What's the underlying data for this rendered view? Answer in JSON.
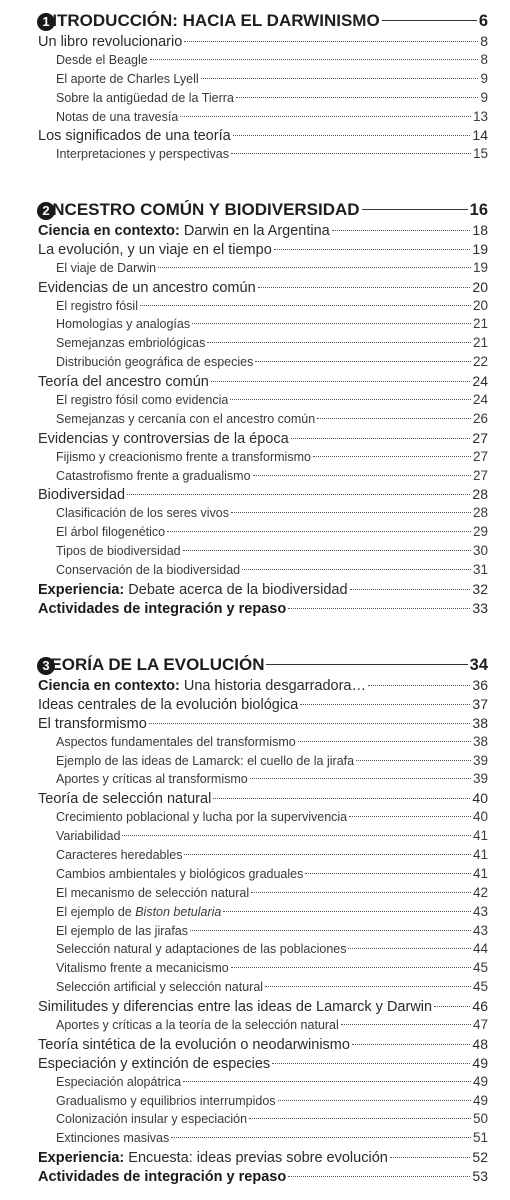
{
  "chapters": [
    {
      "number": "1",
      "title": "INTRODUCCIÓN: HACIA EL DARWINISMO",
      "page": "6",
      "entries": [
        {
          "level": "sec",
          "title": "Un libro revolucionario",
          "page": "8"
        },
        {
          "level": "sub",
          "title": "Desde el Beagle",
          "page": "8"
        },
        {
          "level": "sub",
          "title": "El aporte de Charles Lyell",
          "page": "9"
        },
        {
          "level": "sub",
          "title": "Sobre la antigüedad de la Tierra",
          "page": "9"
        },
        {
          "level": "sub",
          "title": "Notas de una travesía",
          "page": "13"
        },
        {
          "level": "sec",
          "title": "Los significados de una teoría",
          "page": "14"
        },
        {
          "level": "sub",
          "title": "Interpretaciones y perspectivas",
          "page": "15"
        }
      ]
    },
    {
      "number": "2",
      "title": "ANCESTRO COMÚN Y BIODIVERSIDAD",
      "page": "16",
      "entries": [
        {
          "level": "sec",
          "prefix": "Ciencia en contexto:",
          "title": "Darwin en la Argentina",
          "page": "18"
        },
        {
          "level": "sec",
          "title": "La evolución, y un viaje en el tiempo",
          "page": "19"
        },
        {
          "level": "sub",
          "title": "El viaje de Darwin",
          "page": "19"
        },
        {
          "level": "sec",
          "title": "Evidencias de un ancestro común",
          "page": "20"
        },
        {
          "level": "sub",
          "title": "El registro fósil",
          "page": "20"
        },
        {
          "level": "sub",
          "title": "Homologías y analogías",
          "page": "21"
        },
        {
          "level": "sub",
          "title": "Semejanzas embriológicas",
          "page": "21"
        },
        {
          "level": "sub",
          "title": "Distribución geográfica de especies",
          "page": "22"
        },
        {
          "level": "sec",
          "title": "Teoría del ancestro común",
          "page": "24"
        },
        {
          "level": "sub",
          "title": "El registro fósil como evidencia",
          "page": "24"
        },
        {
          "level": "sub",
          "title": "Semejanzas y cercanía con el ancestro común",
          "page": "26"
        },
        {
          "level": "sec",
          "title": "Evidencias y controversias de la época",
          "page": "27"
        },
        {
          "level": "sub",
          "title": "Fijismo y creacionismo frente a transformismo",
          "page": "27"
        },
        {
          "level": "sub",
          "title": "Catastrofismo frente a gradualismo",
          "page": "27"
        },
        {
          "level": "sec",
          "title": "Biodiversidad",
          "page": "28"
        },
        {
          "level": "sub",
          "title": "Clasificación de los seres vivos",
          "page": "28"
        },
        {
          "level": "sub",
          "title": "El árbol filogenético",
          "page": "29"
        },
        {
          "level": "sub",
          "title": "Tipos de biodiversidad",
          "page": "30"
        },
        {
          "level": "sub",
          "title": "Conservación de la biodiversidad",
          "page": "31"
        },
        {
          "level": "sec",
          "prefix": "Experiencia:",
          "title": "Debate acerca de la biodiversidad",
          "page": "32"
        },
        {
          "level": "sec",
          "prefix": "Actividades de integración y repaso",
          "title": "",
          "page": "33"
        }
      ]
    },
    {
      "number": "3",
      "title": "TEORÍA DE LA EVOLUCIÓN",
      "page": "34",
      "entries": [
        {
          "level": "sec",
          "prefix": "Ciencia en contexto:",
          "title": "Una historia desgarradora…",
          "page": "36"
        },
        {
          "level": "sec",
          "title": "Ideas centrales de la evolución biológica",
          "page": "37"
        },
        {
          "level": "sec",
          "title": "El transformismo",
          "page": "38"
        },
        {
          "level": "sub",
          "title": "Aspectos fundamentales del transformismo",
          "page": "38"
        },
        {
          "level": "sub",
          "title": "Ejemplo de las ideas de Lamarck: el cuello de la jirafa",
          "page": "39"
        },
        {
          "level": "sub",
          "title": "Aportes y críticas al transformismo",
          "page": "39"
        },
        {
          "level": "sec",
          "title": "Teoría de selección natural",
          "page": "40"
        },
        {
          "level": "sub",
          "title": "Crecimiento poblacional y lucha por la supervivencia",
          "page": "40"
        },
        {
          "level": "sub",
          "title": "Variabilidad",
          "page": "41"
        },
        {
          "level": "sub",
          "title": "Caracteres heredables",
          "page": "41"
        },
        {
          "level": "sub",
          "title": "Cambios ambientales y biológicos graduales",
          "page": "41"
        },
        {
          "level": "sub",
          "title": "El mecanismo de selección natural",
          "page": "42"
        },
        {
          "level": "sub",
          "title": "El ejemplo de ",
          "italic": "Biston betularia",
          "page": "43"
        },
        {
          "level": "sub",
          "title": "El ejemplo de las jirafas",
          "page": "43"
        },
        {
          "level": "sub",
          "title": "Selección natural y adaptaciones de las poblaciones",
          "page": "44"
        },
        {
          "level": "sub",
          "title": "Vitalismo frente a mecanicismo",
          "page": "45"
        },
        {
          "level": "sub",
          "title": "Selección artificial y selección natural",
          "page": "45"
        },
        {
          "level": "sec",
          "title": "Similitudes y diferencias entre las ideas de Lamarck y Darwin",
          "page": "46"
        },
        {
          "level": "sub",
          "title": "Aportes y críticas a la teoría de la selección natural",
          "page": "47"
        },
        {
          "level": "sec",
          "title": "Teoría sintética de la evolución o neodarwinismo",
          "page": "48"
        },
        {
          "level": "sec",
          "title": "Especiación y extinción de especies",
          "page": "49"
        },
        {
          "level": "sub",
          "title": "Especiación alopátrica",
          "page": "49"
        },
        {
          "level": "sub",
          "title": "Gradualismo y equilibrios interrumpidos",
          "page": "49"
        },
        {
          "level": "sub",
          "title": "Colonización insular y especiación",
          "page": "50"
        },
        {
          "level": "sub",
          "title": "Extinciones masivas",
          "page": "51"
        },
        {
          "level": "sec",
          "prefix": "Experiencia:",
          "title": "Encuesta: ideas previas sobre evolución",
          "page": "52"
        },
        {
          "level": "sec",
          "prefix": "Actividades de integración y repaso",
          "title": "",
          "page": "53"
        }
      ]
    }
  ]
}
